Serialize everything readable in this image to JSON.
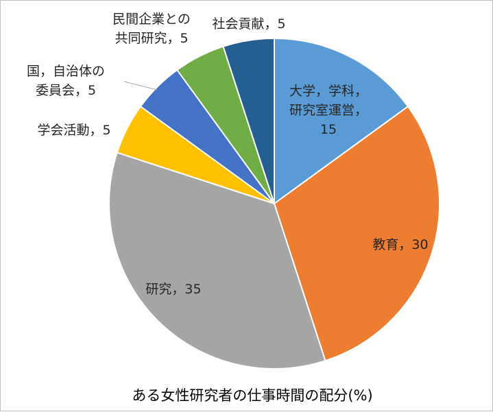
{
  "chart_data": {
    "type": "pie",
    "title": "ある女性研究者の仕事時間の配分(%)",
    "start_angle_deg": 0,
    "direction": "clockwise",
    "slices": [
      {
        "label": [
          "大学，学科，",
          "研究室運営，",
          "15"
        ],
        "value": 15,
        "color": "#5B9BD5"
      },
      {
        "label": [
          "教育，30"
        ],
        "value": 30,
        "color": "#ED7D31"
      },
      {
        "label": [
          "研究，35"
        ],
        "value": 35,
        "color": "#A5A5A5"
      },
      {
        "label": [
          "学会活動，5"
        ],
        "value": 5,
        "color": "#FFC000"
      },
      {
        "label": [
          "国，自治体の",
          "委員会，5"
        ],
        "value": 5,
        "color": "#4472C4"
      },
      {
        "label": [
          "民間企業との",
          "共同研究，5"
        ],
        "value": 5,
        "color": "#70AD47"
      },
      {
        "label": [
          "社会貢献，5"
        ],
        "value": 5,
        "color": "#255E91"
      }
    ]
  }
}
